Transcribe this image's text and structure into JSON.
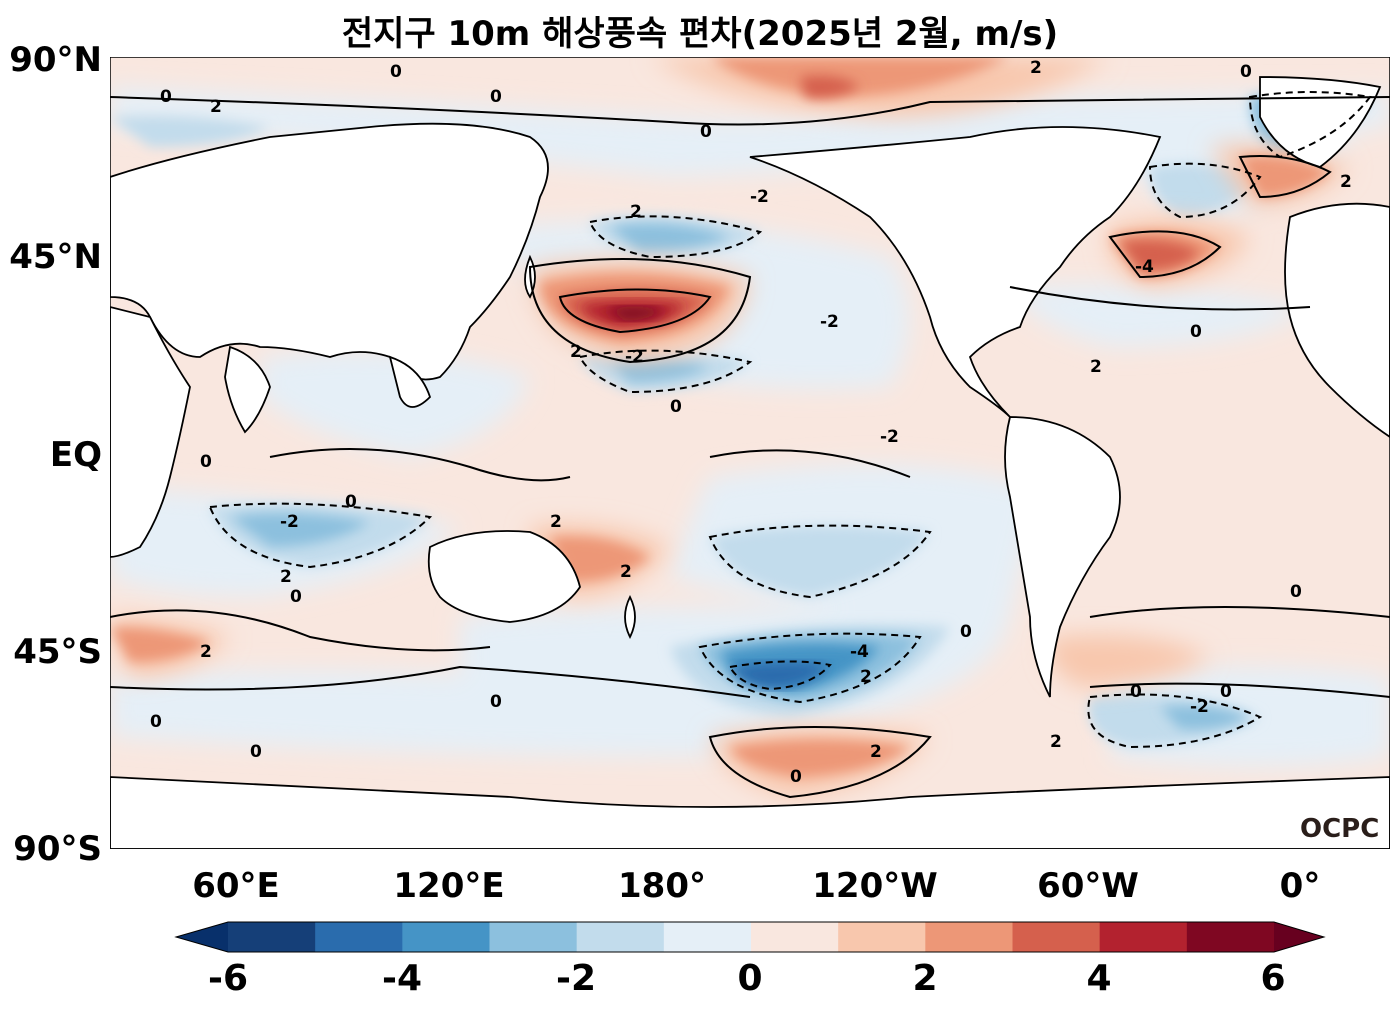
{
  "title": "전지구 10m 해상풍속 편차(2025년 2월, m/s)",
  "logo": "OCPC",
  "y_ticks": [
    "90°N",
    "45°N",
    "EQ",
    "45°S",
    "90°S"
  ],
  "x_ticks": [
    "60°E",
    "120°E",
    "180°",
    "120°W",
    "60°W",
    "0°"
  ],
  "colorbar": {
    "labels": [
      "-6",
      "-4",
      "-2",
      "0",
      "2",
      "4",
      "6"
    ],
    "levels": [
      -6,
      -5,
      -4,
      -3,
      -2,
      -1,
      0,
      1,
      2,
      3,
      4,
      5,
      6
    ],
    "colors": [
      "#153f78",
      "#2a6cad",
      "#4594c6",
      "#8cc0de",
      "#c2dcec",
      "#e5eff7",
      "#f9e7df",
      "#f8c7ad",
      "#ed9777",
      "#d5604d",
      "#b3222f",
      "#7f0722"
    ],
    "extend": "both"
  },
  "map": {
    "projection": "plate-carree",
    "lon_range": [
      25,
      385
    ],
    "lat_range": [
      -90,
      90
    ],
    "ocean_background_color": "#f9e7df",
    "land_color": "#ffffff",
    "contour_color": "#000000"
  }
}
